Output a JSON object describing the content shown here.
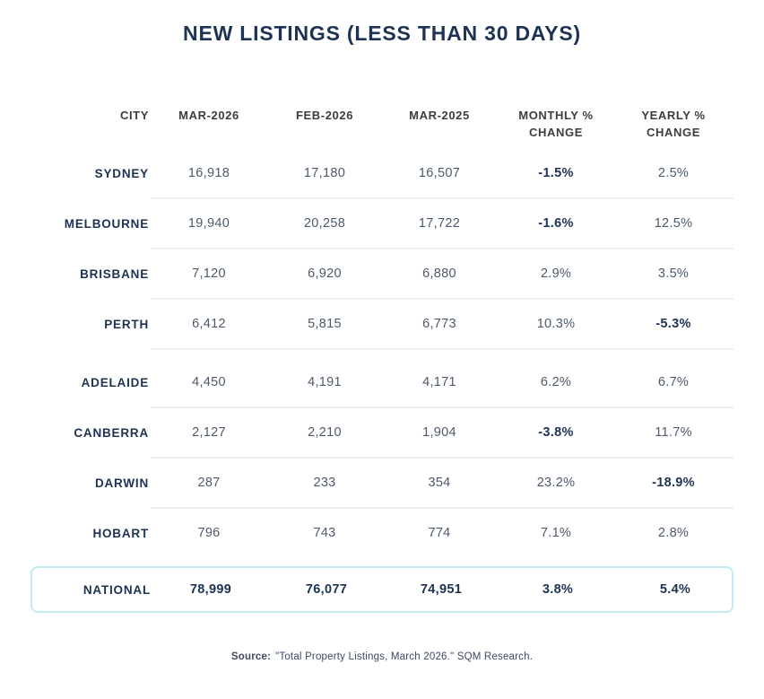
{
  "title": "NEW LISTINGS (LESS THAN 30 DAYS)",
  "colors": {
    "title_navy": "#1e3354",
    "header_gray": "#3d3d3d",
    "body_slate": "#4d5a6b",
    "divider": "#e9f1f6",
    "national_border": "#c2ebf2",
    "background": "#ffffff"
  },
  "chart_data": {
    "type": "table",
    "title": "NEW LISTINGS (LESS THAN 30 DAYS)",
    "columns": [
      "CITY",
      "MAR-2026",
      "FEB-2026",
      "MAR-2025",
      "MONTHLY %\nCHANGE",
      "YEARLY %\nCHANGE"
    ],
    "rows": [
      {
        "city": "SYDNEY",
        "mar_2026": "16,918",
        "feb_2026": "17,180",
        "mar_2025": "16,507",
        "monthly_change": "-1.5%",
        "yearly_change": "2.5%",
        "monthly_bold": true,
        "yearly_bold": false
      },
      {
        "city": "MELBOURNE",
        "mar_2026": "19,940",
        "feb_2026": "20,258",
        "mar_2025": "17,722",
        "monthly_change": "-1.6%",
        "yearly_change": "12.5%",
        "monthly_bold": true,
        "yearly_bold": false
      },
      {
        "city": "BRISBANE",
        "mar_2026": "7,120",
        "feb_2026": "6,920",
        "mar_2025": "6,880",
        "monthly_change": "2.9%",
        "yearly_change": "3.5%",
        "monthly_bold": false,
        "yearly_bold": false
      },
      {
        "city": "PERTH",
        "mar_2026": "6,412",
        "feb_2026": "5,815",
        "mar_2025": "6,773",
        "monthly_change": "10.3%",
        "yearly_change": "-5.3%",
        "monthly_bold": false,
        "yearly_bold": true
      },
      {
        "city": "ADELAIDE",
        "mar_2026": "4,450",
        "feb_2026": "4,191",
        "mar_2025": "4,171",
        "monthly_change": "6.2%",
        "yearly_change": "6.7%",
        "monthly_bold": false,
        "yearly_bold": false
      },
      {
        "city": "CANBERRA",
        "mar_2026": "2,127",
        "feb_2026": "2,210",
        "mar_2025": "1,904",
        "monthly_change": "-3.8%",
        "yearly_change": "11.7%",
        "monthly_bold": true,
        "yearly_bold": false
      },
      {
        "city": "DARWIN",
        "mar_2026": "287",
        "feb_2026": "233",
        "mar_2025": "354",
        "monthly_change": "23.2%",
        "yearly_change": "-18.9%",
        "monthly_bold": false,
        "yearly_bold": true
      },
      {
        "city": "HOBART",
        "mar_2026": "796",
        "feb_2026": "743",
        "mar_2025": "774",
        "monthly_change": "7.1%",
        "yearly_change": "2.8%",
        "monthly_bold": false,
        "yearly_bold": false
      }
    ],
    "national": {
      "city": "NATIONAL",
      "mar_2026": "78,999",
      "feb_2026": "76,077",
      "mar_2025": "74,951",
      "monthly_change": "3.8%",
      "yearly_change": "5.4%"
    }
  },
  "source": {
    "label": "Source:",
    "text": "\"Total Property Listings, March 2026.\" SQM Research."
  }
}
